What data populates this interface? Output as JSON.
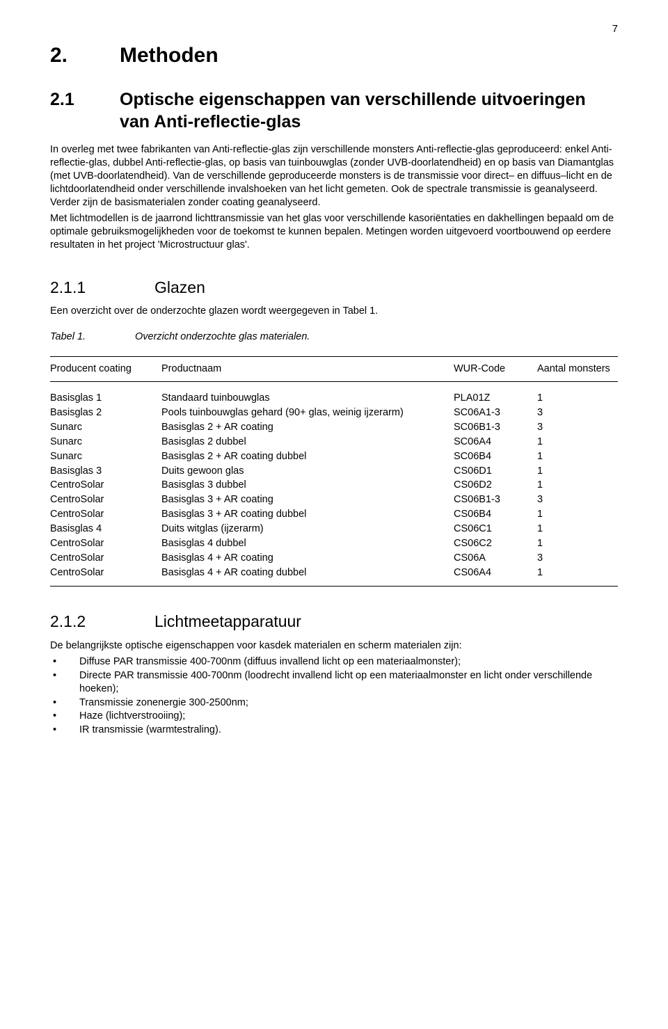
{
  "page_number": "7",
  "h1": {
    "num": "2.",
    "text": "Methoden"
  },
  "h2_1": {
    "num": "2.1",
    "text": "Optische eigenschappen van verschillende uitvoeringen van Anti-reflectie-glas"
  },
  "para1": "In overleg met twee fabrikanten van Anti-reflectie-glas zijn verschillende monsters Anti-reflectie-glas geproduceerd: enkel Anti-reflectie-glas, dubbel Anti-reflectie-glas, op basis van tuinbouwglas (zonder UVB-doorlatendheid) en op basis van Diamantglas (met UVB-doorlatendheid). Van de verschillende geproduceerde monsters is de transmissie voor direct– en diffuus–licht en de lichtdoorlatendheid onder verschillende invalshoeken van het licht gemeten. Ook de spectrale transmissie is geanalyseerd. Verder zijn de basismaterialen zonder coating geanalyseerd.",
  "para2": "Met lichtmodellen is de jaarrond lichttransmissie van het glas voor verschillende kasoriëntaties en dakhellingen bepaald om de optimale gebruiksmogelijkheden voor de toekomst te kunnen bepalen. Metingen worden uitgevoerd voortbouwend op eerdere resultaten in het project 'Microstructuur glas'.",
  "h3_1": {
    "num": "2.1.1",
    "text": "Glazen"
  },
  "intro_211": "Een overzicht over de onderzochte glazen wordt weergegeven in Tabel 1.",
  "table_caption": {
    "label": "Tabel 1.",
    "text": "Overzicht onderzochte glas materialen."
  },
  "table": {
    "columns": [
      "Producent coating",
      "Productnaam",
      "WUR-Code",
      "Aantal monsters"
    ],
    "rows": [
      [
        "Basisglas 1",
        "Standaard tuinbouwglas",
        "PLA01Z",
        "1"
      ],
      [
        "Basisglas 2",
        "Pools tuinbouwglas gehard (90+ glas, weinig ijzerarm)",
        "SC06A1-3",
        "3"
      ],
      [
        "Sunarc",
        "Basisglas 2 + AR coating",
        "SC06B1-3",
        "3"
      ],
      [
        "Sunarc",
        "Basisglas 2 dubbel",
        "SC06A4",
        "1"
      ],
      [
        "Sunarc",
        "Basisglas 2 + AR coating dubbel",
        "SC06B4",
        "1"
      ],
      [
        "Basisglas 3",
        "Duits gewoon glas",
        "CS06D1",
        "1"
      ],
      [
        "CentroSolar",
        "Basisglas 3 dubbel",
        "CS06D2",
        "1"
      ],
      [
        "CentroSolar",
        "Basisglas 3 + AR coating",
        "CS06B1-3",
        "3"
      ],
      [
        "CentroSolar",
        "Basisglas 3 + AR coating dubbel",
        "CS06B4",
        "1"
      ],
      [
        "Basisglas 4",
        "Duits witglas (ijzerarm)",
        "CS06C1",
        "1"
      ],
      [
        "CentroSolar",
        "Basisglas 4 dubbel",
        "CS06C2",
        "1"
      ],
      [
        "CentroSolar",
        "Basisglas 4 + AR coating",
        "CS06A",
        "3"
      ],
      [
        "CentroSolar",
        "Basisglas 4 + AR coating dubbel",
        "CS06A4",
        "1"
      ]
    ]
  },
  "h3_2": {
    "num": "2.1.2",
    "text": "Lichtmeetapparatuur"
  },
  "intro_212": "De belangrijkste optische eigenschappen voor kasdek materialen en scherm materialen zijn:",
  "bullets": [
    "Diffuse PAR transmissie 400-700nm (diffuus invallend licht op een materiaalmonster);",
    "Directe PAR transmissie 400-700nm (loodrecht invallend licht op een materiaalmonster en licht onder verschillende hoeken);",
    "Transmissie zonenergie 300-2500nm;",
    "Haze (lichtverstrooiing);",
    "IR transmissie (warmtestraling)."
  ]
}
